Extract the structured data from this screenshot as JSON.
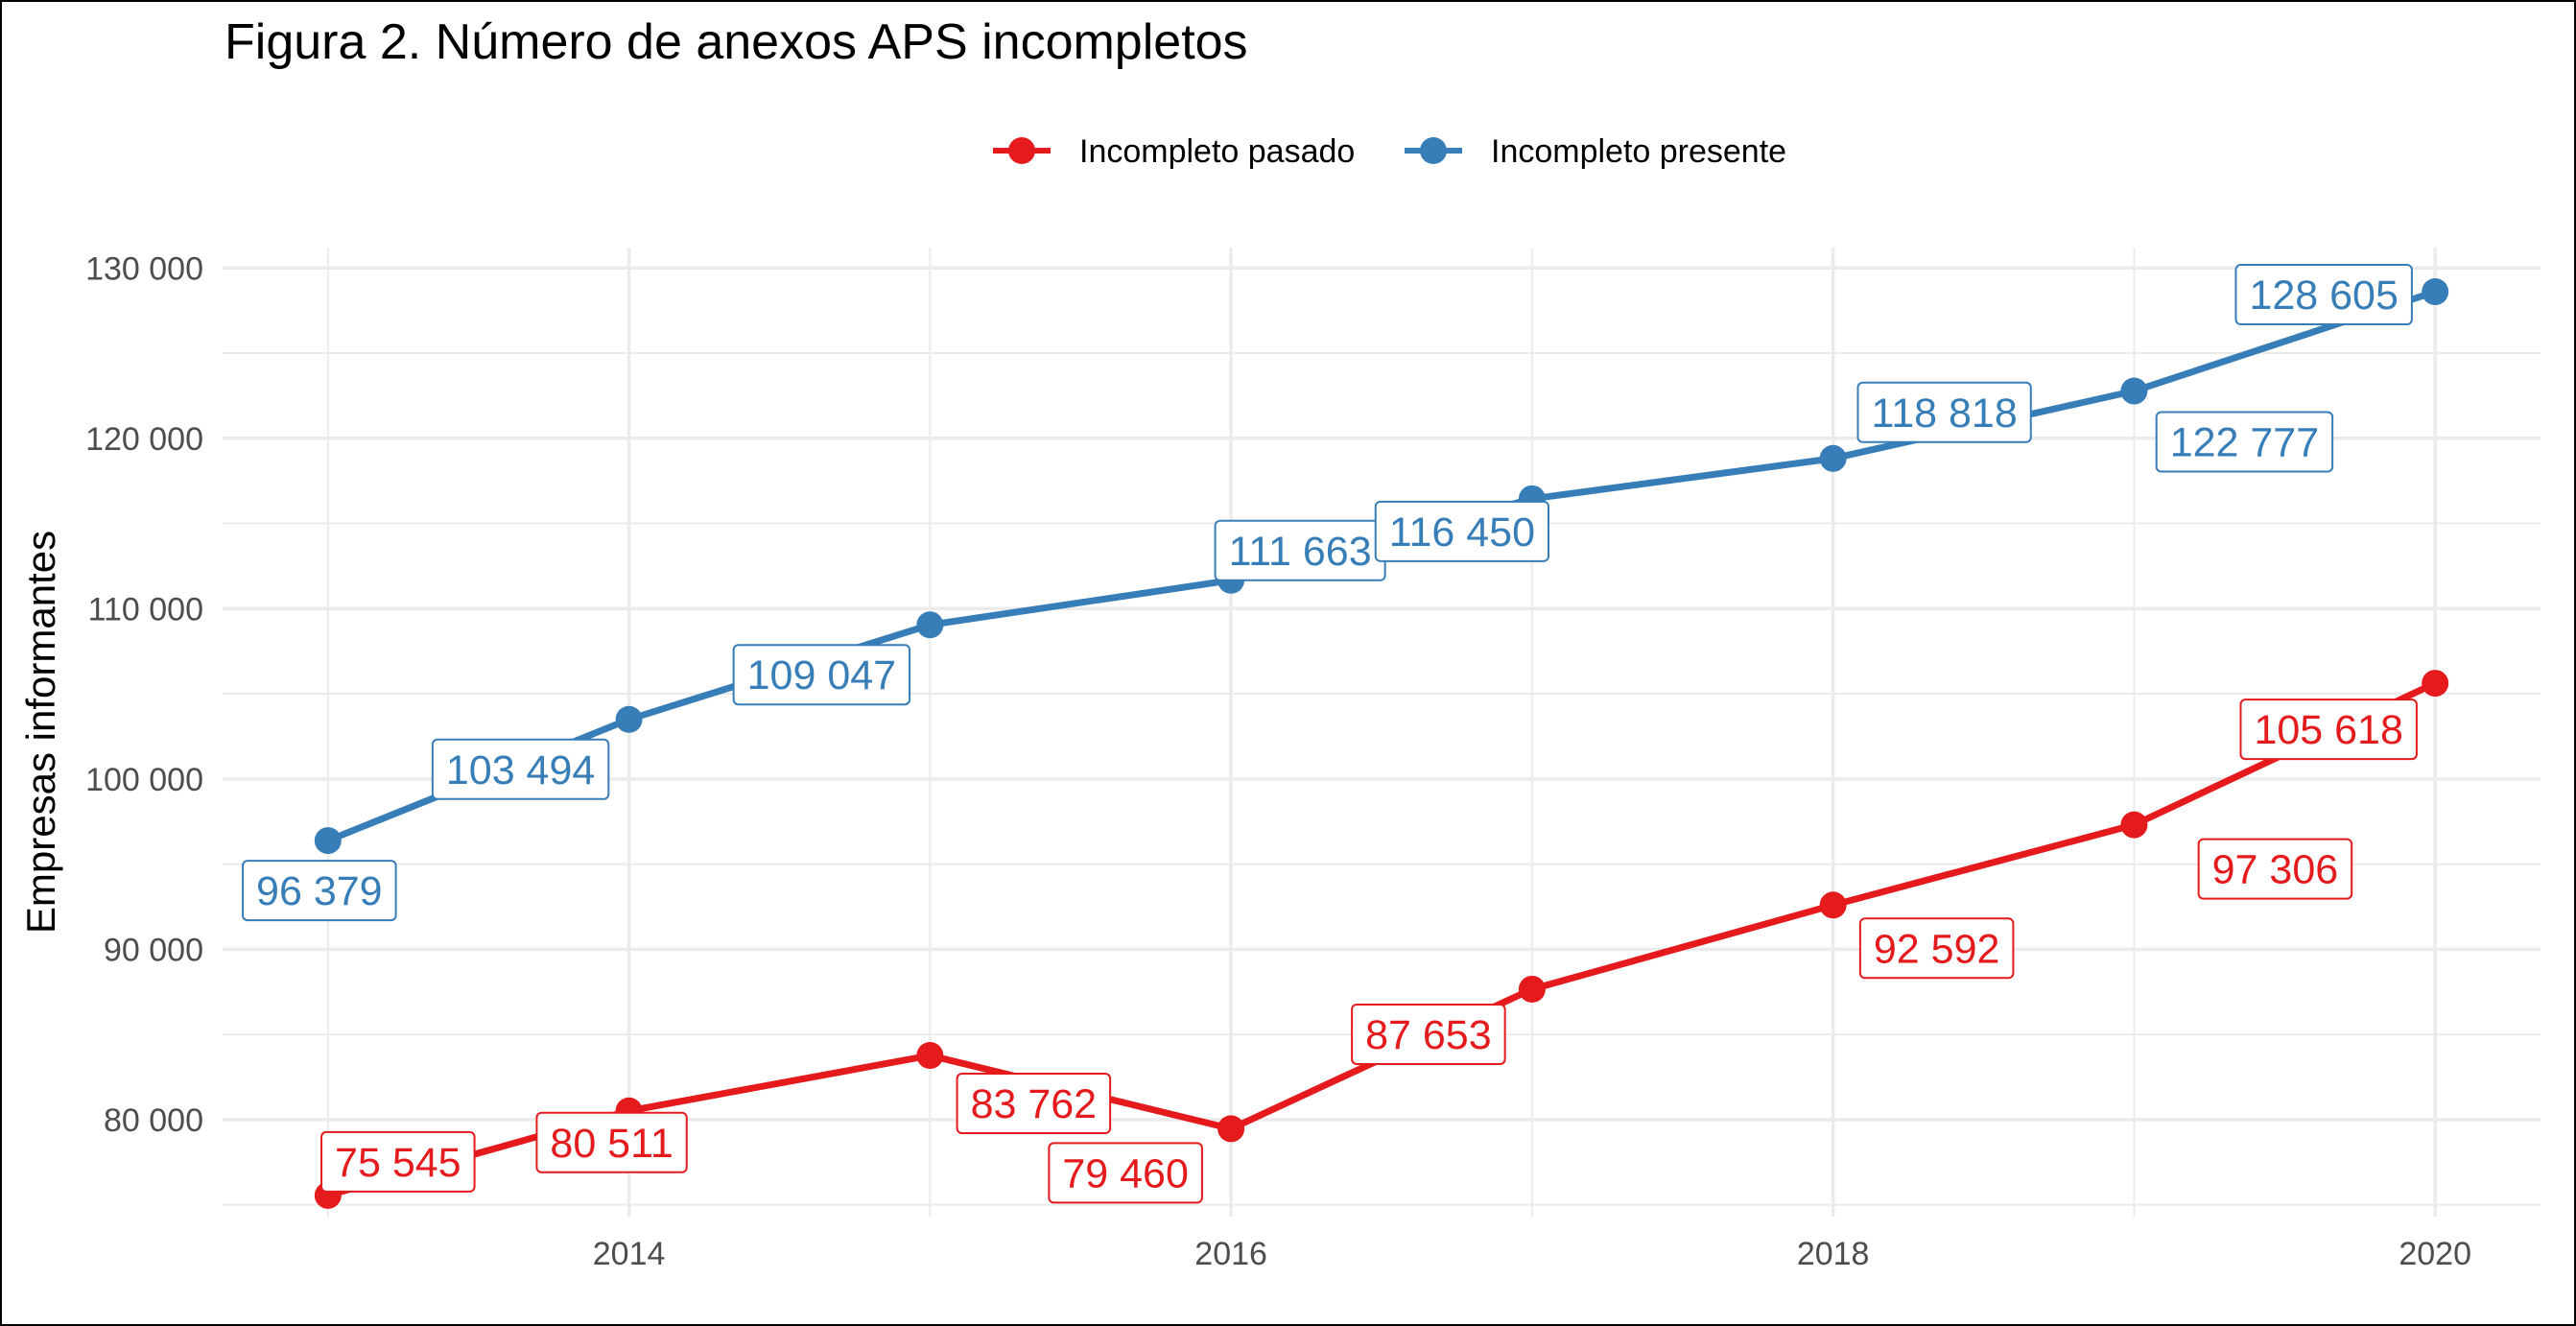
{
  "colors": {
    "pasado": "#e41a1c",
    "presente": "#377eb8",
    "grid": "#ebebeb",
    "tick_text": "#4d4d4d"
  },
  "chart_data": {
    "type": "line",
    "title": "Figura 2. Número de anexos APS incompletos",
    "xlabel": "",
    "ylabel": "Empresas informantes",
    "x": [
      2013,
      2014,
      2015,
      2016,
      2017,
      2018,
      2019,
      2020
    ],
    "x_ticks": [
      2014,
      2016,
      2018,
      2020
    ],
    "y_ticks": [
      80000,
      90000,
      100000,
      110000,
      120000,
      130000
    ],
    "y_tick_labels": [
      "80 000",
      "90 000",
      "100 000",
      "110 000",
      "120 000",
      "130 000"
    ],
    "xlim": [
      2012.65,
      2020.35
    ],
    "ylim": [
      74300,
      131200
    ],
    "grid": true,
    "legend_position": "top",
    "series": [
      {
        "name": "Incompleto pasado",
        "color_key": "pasado",
        "values": [
          75545,
          80511,
          83762,
          79460,
          87653,
          92592,
          97306,
          105618
        ],
        "labels": [
          "75 545",
          "80 511",
          "83 762",
          "79 460",
          "87 653",
          "92 592",
          "97 306",
          "105 618"
        ]
      },
      {
        "name": "Incompleto presente",
        "color_key": "presente",
        "values": [
          96379,
          103494,
          109047,
          111663,
          116450,
          118818,
          122777,
          128605
        ],
        "labels": [
          "96 379",
          "103 494",
          "109 047",
          "111 663",
          "116 450",
          "118 818",
          "122 777",
          "128 605"
        ]
      }
    ]
  }
}
